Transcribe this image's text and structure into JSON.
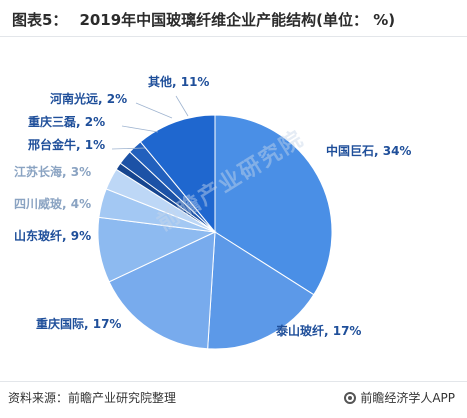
{
  "title": {
    "label": "图表5：",
    "text": "2019年中国玻璃纤维企业产能结构(单位： %)"
  },
  "chart_data": {
    "type": "pie",
    "title": "2019年中国玻璃纤维企业产能结构(单位： %)",
    "unit": "%",
    "slices": [
      {
        "label": "中国巨石",
        "value": 34,
        "display": "中国巨石, 34%",
        "color": "#4a8fe6"
      },
      {
        "label": "泰山玻纤",
        "value": 17,
        "display": "泰山玻纤, 17%",
        "color": "#5c99e8"
      },
      {
        "label": "重庆国际",
        "value": 17,
        "display": "重庆国际, 17%",
        "color": "#78abed"
      },
      {
        "label": "山东玻纤",
        "value": 9,
        "display": "山东玻纤, 9%",
        "color": "#8dbaf0"
      },
      {
        "label": "四川威玻",
        "value": 4,
        "display": "四川威玻, 4%",
        "color": "#a3c8f3"
      },
      {
        "label": "江苏长海",
        "value": 3,
        "display": "江苏长海, 3%",
        "color": "#bdd7f6"
      },
      {
        "label": "邢台金牛",
        "value": 1,
        "display": "邢台金牛, 1%",
        "color": "#16458f"
      },
      {
        "label": "重庆三磊",
        "value": 2,
        "display": "重庆三磊, 2%",
        "color": "#1c52a6"
      },
      {
        "label": "河南光远",
        "value": 2,
        "display": "河南光远, 2%",
        "color": "#2260bd"
      },
      {
        "label": "其他",
        "value": 11,
        "display": "其他, 11%",
        "color": "#1f67cf"
      }
    ],
    "label_color": "#1f4f9a",
    "light_label_color": "#8aa3c2"
  },
  "watermark": "前瞻产业研究院",
  "footer": {
    "source": "资料来源：前瞻产业研究院整理",
    "brand": "前瞻经济学人APP"
  }
}
